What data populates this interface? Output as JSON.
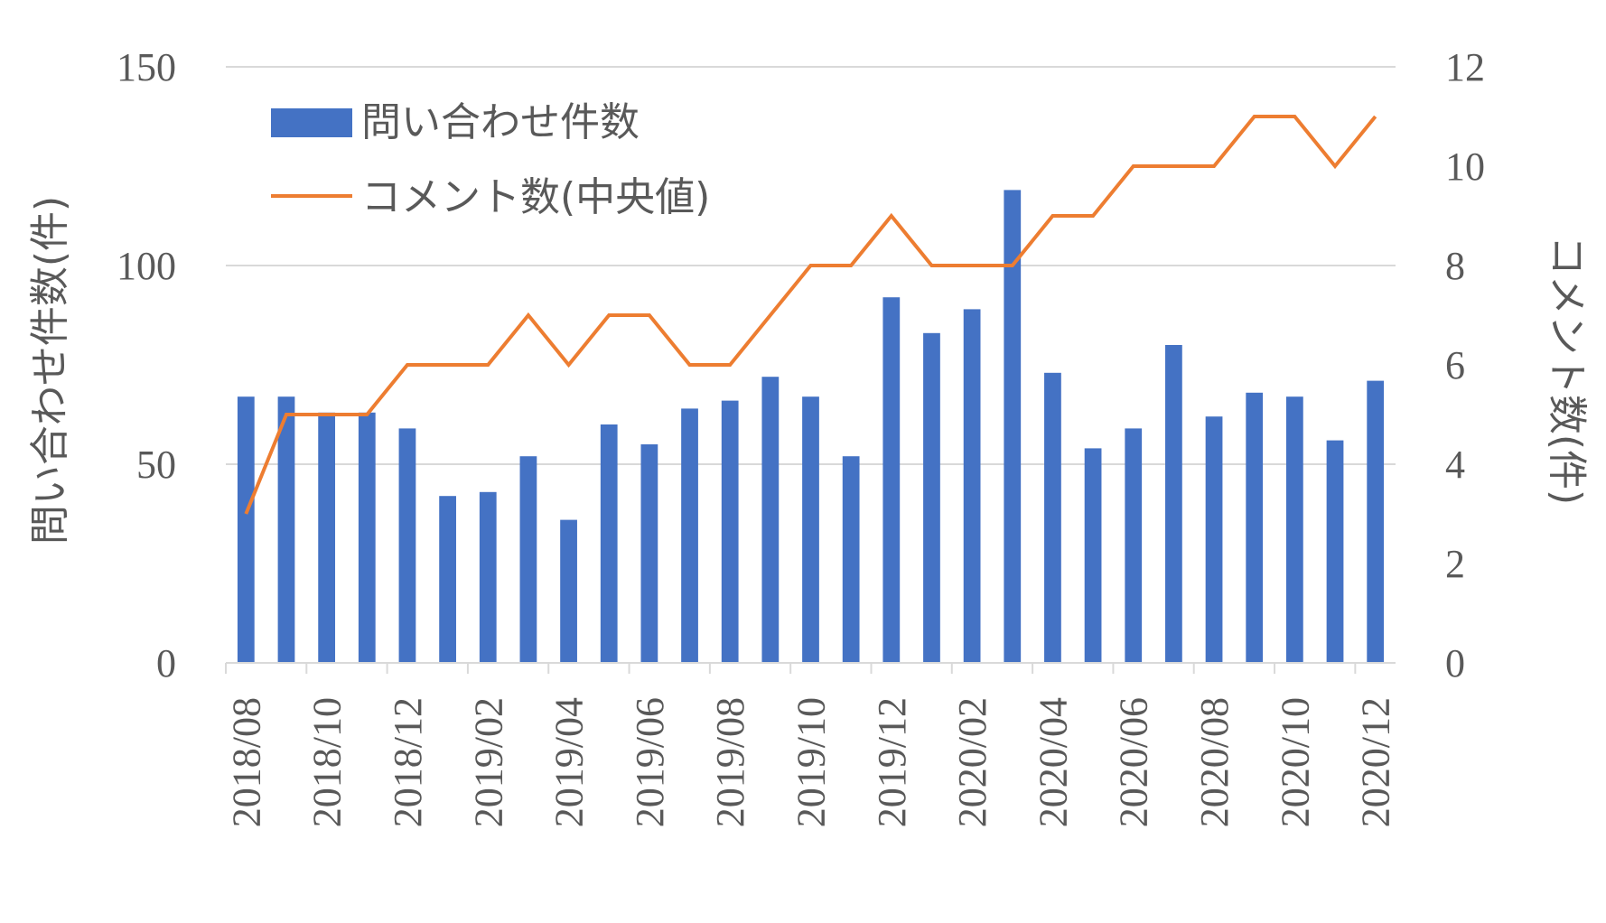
{
  "chart_data": {
    "type": "bar",
    "title": "",
    "categories": [
      "2018/08",
      "2018/09",
      "2018/10",
      "2018/11",
      "2018/12",
      "2019/01",
      "2019/02",
      "2019/03",
      "2019/04",
      "2019/05",
      "2019/06",
      "2019/07",
      "2019/08",
      "2019/09",
      "2019/10",
      "2019/11",
      "2019/12",
      "2020/01",
      "2020/02",
      "2020/03",
      "2020/04",
      "2020/05",
      "2020/06",
      "2020/07",
      "2020/08",
      "2020/09",
      "2020/10",
      "2020/11",
      "2020/12"
    ],
    "x_tick_labels": [
      "2018/08",
      "2018/10",
      "2018/12",
      "2019/02",
      "2019/04",
      "2019/06",
      "2019/08",
      "2019/10",
      "2019/12",
      "2020/02",
      "2020/04",
      "2020/06",
      "2020/08",
      "2020/10",
      "2020/12"
    ],
    "series": [
      {
        "name": "問い合わせ件数",
        "type": "bar",
        "axis": "left",
        "color": "#4472C4",
        "values": [
          67,
          67,
          63,
          63,
          59,
          42,
          43,
          52,
          36,
          60,
          55,
          64,
          66,
          72,
          67,
          52,
          92,
          83,
          89,
          119,
          73,
          54,
          59,
          80,
          62,
          68,
          67,
          56,
          71
        ]
      },
      {
        "name": "コメント数(中央値)",
        "type": "line",
        "axis": "right",
        "color": "#ED7D31",
        "values": [
          3,
          5,
          5,
          5,
          6,
          6,
          6,
          7,
          6,
          7,
          7,
          6,
          6,
          7,
          8,
          8,
          9,
          8,
          8,
          8,
          9,
          9,
          10,
          10,
          10,
          11,
          11,
          10,
          11
        ]
      }
    ],
    "y_left": {
      "label": "問い合わせ件数(件)",
      "min": 0,
      "max": 150,
      "ticks": [
        0,
        50,
        100,
        150
      ]
    },
    "y_right": {
      "label": "コメント数(件)",
      "min": 0,
      "max": 12,
      "ticks": [
        0,
        2,
        4,
        6,
        8,
        10,
        12
      ]
    },
    "grid": true,
    "legend_position": "top-left"
  }
}
